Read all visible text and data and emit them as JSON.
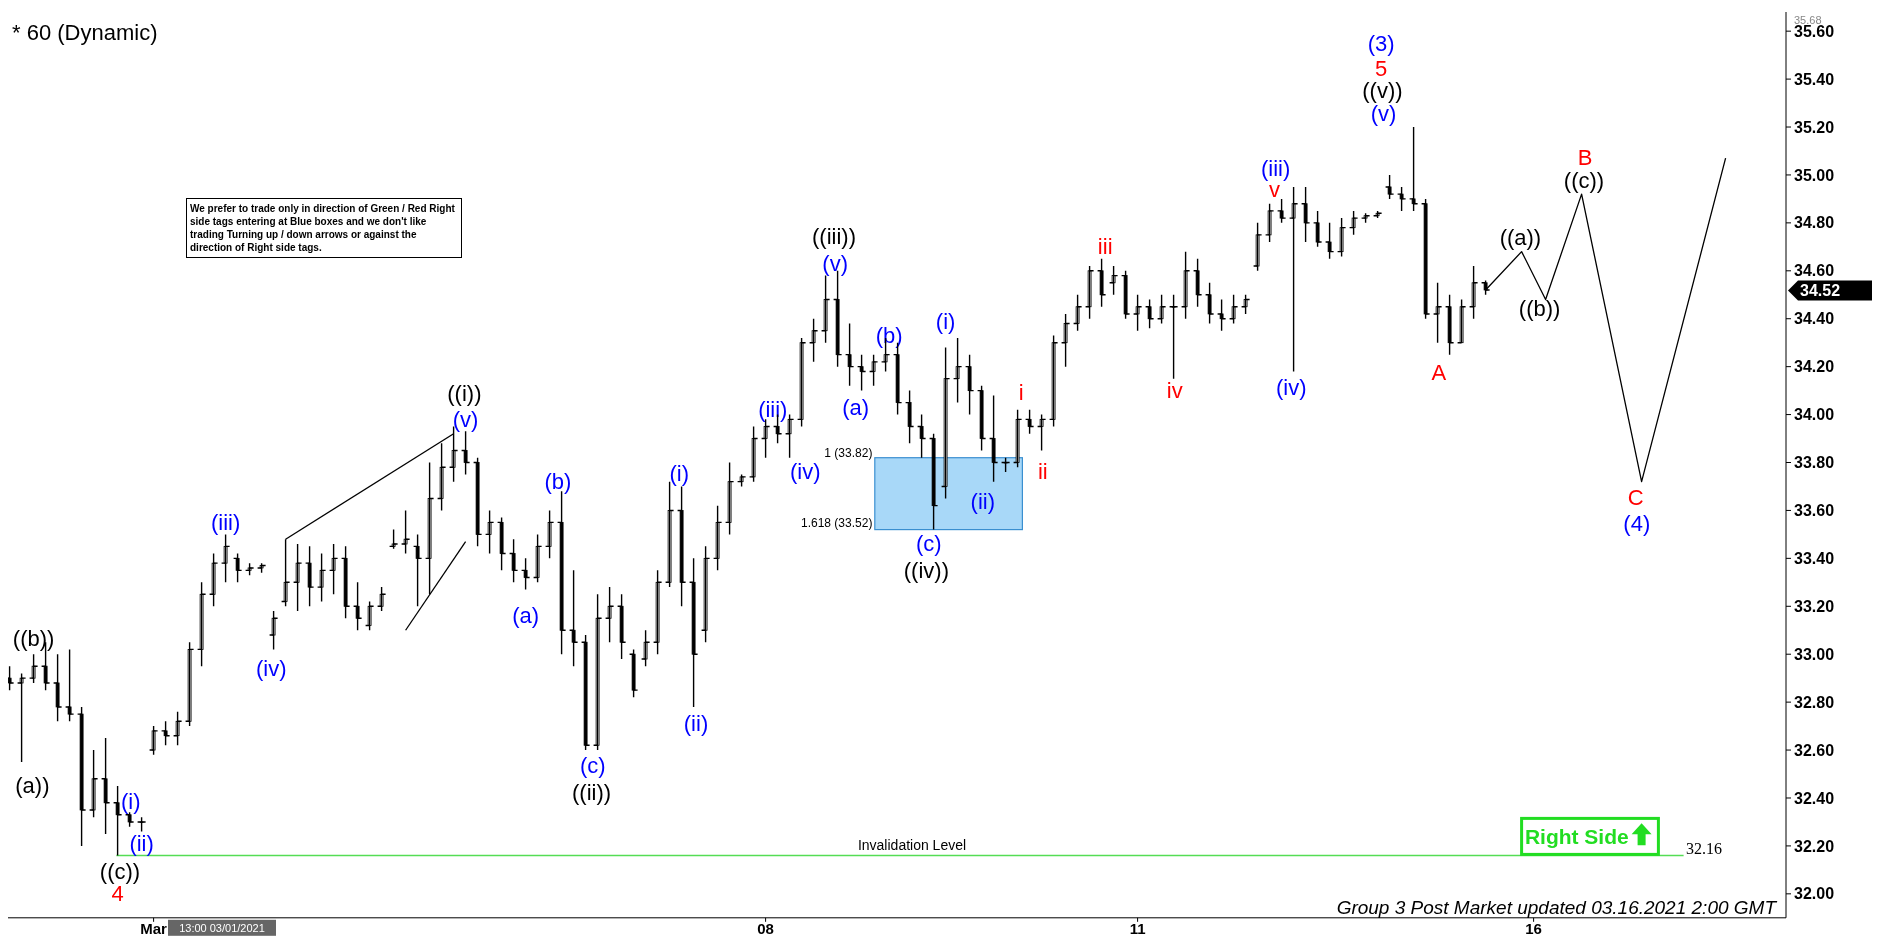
{
  "chart_data": {
    "type": "candlestick",
    "title": "* 60 (Dynamic)",
    "categories": [
      null,
      null,
      null,
      null,
      null,
      null,
      null,
      null,
      null,
      null,
      null,
      null,
      "Mar",
      null,
      null,
      null,
      null,
      null,
      null,
      null,
      null,
      null,
      null,
      null,
      null,
      null,
      null,
      null,
      null,
      null,
      null,
      null,
      null,
      null,
      null,
      null,
      null,
      null,
      null,
      null,
      null,
      null,
      null,
      null,
      null,
      null,
      null,
      null,
      null,
      null,
      null,
      null,
      null,
      null,
      null,
      null,
      null,
      null,
      null,
      null,
      null,
      null,
      null,
      "08",
      null,
      null,
      null,
      null,
      null,
      null,
      null,
      null,
      null,
      null,
      null,
      null,
      null,
      null,
      null,
      null,
      null,
      null,
      null,
      null,
      null,
      null,
      null,
      null,
      null,
      null,
      null,
      null,
      null,
      null,
      "11",
      null,
      null,
      null,
      null,
      null,
      null,
      null,
      null,
      null,
      null,
      null,
      null,
      null,
      null,
      null,
      null,
      null,
      null,
      null,
      null,
      null,
      null,
      null,
      null,
      null,
      null,
      null,
      null,
      null,
      null,
      null,
      null,
      "16",
      null,
      null,
      null,
      null,
      null,
      null,
      null,
      null,
      null,
      null,
      null,
      null,
      null,
      null,
      null,
      null,
      null,
      null,
      null,
      null
    ],
    "ylim": [
      31.9,
      35.68
    ],
    "yticks": [
      {
        "value": 32,
        "label": "32.00"
      },
      {
        "value": 32.2,
        "label": "32.20"
      },
      {
        "value": 32.4,
        "label": "32.40"
      },
      {
        "value": 32.6,
        "label": "32.60"
      },
      {
        "value": 32.8,
        "label": "32.80"
      },
      {
        "value": 33,
        "label": "33.00"
      },
      {
        "value": 33.2,
        "label": "33.20"
      },
      {
        "value": 33.4,
        "label": "33.40"
      },
      {
        "value": 33.6,
        "label": "33.60"
      },
      {
        "value": 33.8,
        "label": "33.80"
      },
      {
        "value": 34,
        "label": "34.00"
      },
      {
        "value": 34.2,
        "label": "34.20"
      },
      {
        "value": 34.4,
        "label": "34.40"
      },
      {
        "value": 34.6,
        "label": "34.60"
      },
      {
        "value": 34.8,
        "label": "34.80"
      },
      {
        "value": 35,
        "label": "35.00"
      },
      {
        "value": 35.2,
        "label": "35.20"
      },
      {
        "value": 35.4,
        "label": "35.40"
      },
      {
        "value": 35.6,
        "label": "35.60"
      }
    ],
    "series": [
      {
        "color": "#000000",
        "ohlc": [
          [
            32.9,
            32.95,
            32.85,
            32.88
          ],
          [
            32.88,
            32.92,
            32.55,
            32.9
          ],
          [
            32.9,
            33.0,
            32.88,
            32.95
          ],
          [
            32.95,
            33.05,
            32.85,
            32.88
          ],
          [
            32.88,
            33.0,
            32.72,
            32.78
          ],
          [
            32.78,
            33.02,
            32.72,
            32.75
          ],
          [
            32.75,
            32.78,
            32.2,
            32.35
          ],
          [
            32.35,
            32.6,
            32.32,
            32.48
          ],
          [
            32.48,
            32.65,
            32.25,
            32.38
          ],
          [
            32.38,
            32.45,
            32.16,
            32.33
          ],
          [
            32.33,
            32.34,
            32.28,
            32.3
          ],
          [
            32.3,
            32.32,
            32.26,
            32.3
          ],
          [
            32.6,
            32.7,
            32.58,
            32.68
          ],
          [
            32.68,
            32.72,
            32.62,
            32.66
          ],
          [
            32.66,
            32.76,
            32.62,
            32.72
          ],
          [
            32.72,
            33.05,
            32.7,
            33.02
          ],
          [
            33.02,
            33.3,
            32.95,
            33.25
          ],
          [
            33.25,
            33.42,
            33.2,
            33.38
          ],
          [
            33.38,
            33.5,
            33.3,
            33.45
          ],
          [
            33.4,
            33.42,
            33.3,
            33.35
          ],
          [
            33.35,
            33.38,
            33.33,
            33.36
          ],
          [
            33.36,
            33.38,
            33.34,
            33.37
          ],
          [
            33.08,
            33.18,
            33.02,
            33.15
          ],
          [
            33.22,
            33.48,
            33.2,
            33.3
          ],
          [
            33.3,
            33.46,
            33.18,
            33.38
          ],
          [
            33.38,
            33.45,
            33.2,
            33.28
          ],
          [
            33.28,
            33.42,
            33.22,
            33.35
          ],
          [
            33.35,
            33.46,
            33.25,
            33.4
          ],
          [
            33.4,
            33.45,
            33.15,
            33.2
          ],
          [
            33.2,
            33.3,
            33.1,
            33.15
          ],
          [
            33.12,
            33.22,
            33.1,
            33.2
          ],
          [
            33.2,
            33.28,
            33.18,
            33.25
          ],
          [
            33.45,
            33.52,
            33.44,
            33.46
          ],
          [
            33.46,
            33.6,
            33.42,
            33.48
          ],
          [
            33.45,
            33.5,
            33.2,
            33.4
          ],
          [
            33.4,
            33.8,
            33.25,
            33.65
          ],
          [
            33.65,
            33.88,
            33.6,
            33.78
          ],
          [
            33.78,
            33.95,
            33.72,
            33.85
          ],
          [
            33.85,
            33.93,
            33.75,
            33.8
          ],
          [
            33.8,
            33.82,
            33.45,
            33.5
          ],
          [
            33.5,
            33.6,
            33.42,
            33.55
          ],
          [
            33.55,
            33.57,
            33.35,
            33.42
          ],
          [
            33.42,
            33.48,
            33.3,
            33.35
          ],
          [
            33.35,
            33.4,
            33.27,
            33.32
          ],
          [
            33.32,
            33.5,
            33.3,
            33.45
          ],
          [
            33.45,
            33.6,
            33.4,
            33.55
          ],
          [
            33.55,
            33.68,
            33.0,
            33.1
          ],
          [
            33.1,
            33.35,
            32.95,
            33.05
          ],
          [
            33.05,
            33.08,
            32.6,
            32.62
          ],
          [
            32.62,
            33.25,
            32.6,
            33.15
          ],
          [
            33.15,
            33.28,
            33.05,
            33.2
          ],
          [
            33.2,
            33.25,
            32.98,
            33.05
          ],
          [
            33.0,
            33.02,
            32.82,
            32.85
          ],
          [
            32.98,
            33.1,
            32.95,
            33.05
          ],
          [
            33.05,
            33.35,
            33.0,
            33.3
          ],
          [
            33.3,
            33.72,
            33.28,
            33.6
          ],
          [
            33.6,
            33.7,
            33.2,
            33.3
          ],
          [
            33.3,
            33.4,
            32.78,
            33.0
          ],
          [
            33.1,
            33.45,
            33.05,
            33.4
          ],
          [
            33.4,
            33.62,
            33.35,
            33.55
          ],
          [
            33.55,
            33.8,
            33.5,
            33.72
          ],
          [
            33.72,
            33.75,
            33.7,
            33.74
          ],
          [
            33.74,
            33.95,
            33.72,
            33.9
          ],
          [
            33.9,
            33.98,
            33.82,
            33.95
          ],
          [
            33.95,
            34.0,
            33.88,
            33.92
          ],
          [
            33.92,
            34.0,
            33.82,
            33.98
          ],
          [
            33.98,
            34.32,
            33.95,
            34.3
          ],
          [
            34.3,
            34.4,
            34.22,
            34.35
          ],
          [
            34.35,
            34.58,
            34.3,
            34.48
          ],
          [
            34.48,
            34.6,
            34.2,
            34.25
          ],
          [
            34.25,
            34.38,
            34.12,
            34.2
          ],
          [
            34.2,
            34.25,
            34.1,
            34.18
          ],
          [
            34.18,
            34.25,
            34.12,
            34.22
          ],
          [
            34.22,
            34.32,
            34.18,
            34.25
          ],
          [
            34.25,
            34.3,
            34.0,
            34.05
          ],
          [
            34.05,
            34.1,
            33.88,
            33.95
          ],
          [
            33.95,
            34.0,
            33.82,
            33.9
          ],
          [
            33.9,
            33.92,
            33.52,
            33.62
          ],
          [
            33.7,
            34.28,
            33.65,
            34.15
          ],
          [
            34.15,
            34.32,
            34.05,
            34.2
          ],
          [
            34.2,
            34.25,
            34.0,
            34.1
          ],
          [
            34.1,
            34.12,
            33.85,
            33.9
          ],
          [
            33.9,
            34.08,
            33.72,
            33.8
          ],
          [
            33.8,
            33.82,
            33.76,
            33.8
          ],
          [
            33.8,
            34.02,
            33.78,
            33.98
          ],
          [
            33.98,
            34.02,
            33.92,
            33.95
          ],
          [
            33.95,
            34.0,
            33.85,
            33.98
          ],
          [
            33.98,
            34.33,
            33.95,
            34.3
          ],
          [
            34.3,
            34.42,
            34.2,
            34.38
          ],
          [
            34.38,
            34.5,
            34.35,
            34.45
          ],
          [
            34.45,
            34.62,
            34.4,
            34.6
          ],
          [
            34.6,
            34.65,
            34.45,
            34.5
          ],
          [
            34.55,
            34.62,
            34.5,
            34.58
          ],
          [
            34.58,
            34.6,
            34.4,
            34.42
          ],
          [
            34.42,
            34.5,
            34.35,
            34.45
          ],
          [
            34.45,
            34.48,
            34.36,
            34.4
          ],
          [
            34.4,
            34.5,
            34.38,
            34.45
          ],
          [
            34.45,
            34.5,
            34.15,
            34.45
          ],
          [
            34.45,
            34.68,
            34.4,
            34.6
          ],
          [
            34.6,
            34.65,
            34.45,
            34.5
          ],
          [
            34.5,
            34.55,
            34.38,
            34.42
          ],
          [
            34.42,
            34.48,
            34.35,
            34.4
          ],
          [
            34.4,
            34.5,
            34.38,
            34.45
          ],
          [
            34.45,
            34.5,
            34.42,
            34.48
          ],
          [
            34.62,
            34.8,
            34.6,
            34.75
          ],
          [
            34.75,
            34.88,
            34.72,
            34.85
          ],
          [
            34.85,
            34.9,
            34.8,
            34.82
          ],
          [
            34.82,
            34.95,
            34.18,
            34.88
          ],
          [
            34.88,
            34.95,
            34.72,
            34.8
          ],
          [
            34.8,
            34.85,
            34.7,
            34.72
          ],
          [
            34.72,
            34.8,
            34.65,
            34.68
          ],
          [
            34.68,
            34.82,
            34.66,
            34.78
          ],
          [
            34.78,
            34.85,
            34.75,
            34.82
          ],
          [
            34.82,
            34.84,
            34.8,
            34.83
          ],
          [
            34.83,
            34.85,
            34.82,
            34.84
          ],
          [
            34.95,
            35.0,
            34.9,
            34.92
          ],
          [
            34.92,
            34.95,
            34.85,
            34.9
          ],
          [
            34.9,
            35.2,
            34.85,
            34.88
          ],
          [
            34.88,
            34.9,
            34.4,
            34.42
          ],
          [
            34.42,
            34.55,
            34.3,
            34.45
          ],
          [
            34.45,
            34.5,
            34.25,
            34.3
          ],
          [
            34.3,
            34.48,
            34.3,
            34.45
          ],
          [
            34.45,
            34.62,
            34.4,
            34.55
          ],
          [
            34.55,
            34.56,
            34.5,
            34.52
          ],
          null,
          null,
          null,
          null,
          null,
          null,
          null,
          null,
          null,
          null,
          null,
          null,
          null,
          null,
          null,
          null,
          null,
          null,
          null,
          null,
          null,
          null,
          null,
          null
        ]
      },
      {
        "type": "line",
        "color": "#000000",
        "values": [
          null,
          null,
          null,
          null,
          null,
          null,
          null,
          null,
          null,
          null,
          null,
          null,
          null,
          null,
          null,
          null,
          null,
          null,
          null,
          null,
          null,
          null,
          null,
          null,
          null,
          null,
          null,
          null,
          null,
          null,
          null,
          null,
          null,
          null,
          null,
          null,
          null,
          null,
          null,
          null,
          null,
          null,
          null,
          null,
          null,
          null,
          null,
          null,
          null,
          null,
          null,
          null,
          null,
          null,
          null,
          null,
          null,
          null,
          null,
          null,
          null,
          null,
          null,
          null,
          null,
          null,
          null,
          null,
          null,
          null,
          null,
          null,
          null,
          null,
          null,
          null,
          null,
          null,
          null,
          null,
          null,
          null,
          null,
          null,
          null,
          null,
          null,
          null,
          null,
          null,
          null,
          null,
          null,
          null,
          null,
          null,
          null,
          null,
          null,
          null,
          null,
          null,
          null,
          null,
          null,
          null,
          null,
          null,
          null,
          null,
          null,
          null,
          null,
          null,
          null,
          null,
          null,
          null,
          null,
          null,
          null,
          null,
          null,
          34.52,
          null,
          null,
          34.68,
          null,
          34.48,
          null,
          null,
          34.92,
          null,
          null,
          null,
          null,
          33.72,
          null,
          null,
          null,
          null,
          null,
          null,
          35.07,
          null,
          null,
          null,
          null
        ]
      },
      {
        "type": "line",
        "color": "#000000",
        "values": [
          null,
          null,
          null,
          null,
          null,
          null,
          null,
          null,
          null,
          null,
          null,
          null,
          null,
          null,
          null,
          null,
          null,
          null,
          null,
          null,
          null,
          null,
          null,
          33.48,
          null,
          null,
          null,
          null,
          null,
          null,
          null,
          null,
          null,
          null,
          null,
          null,
          null,
          33.92,
          null,
          null,
          null,
          null,
          null,
          null,
          null,
          null,
          null,
          null,
          null,
          null,
          null,
          null,
          null,
          null,
          null,
          null,
          null,
          null,
          null,
          null,
          null,
          null,
          null,
          null,
          null,
          null,
          null,
          null,
          null,
          null,
          null,
          null,
          null,
          null,
          null,
          null,
          null,
          null,
          null,
          null,
          null,
          null,
          null,
          null,
          null,
          null,
          null,
          null,
          null,
          null,
          null,
          null,
          null,
          null,
          null,
          null,
          null,
          null,
          null,
          null,
          null,
          null,
          null,
          null,
          null,
          null,
          null,
          null,
          null,
          null,
          null,
          null,
          null,
          null,
          null,
          null,
          null,
          null,
          null,
          null,
          null,
          null,
          null,
          null,
          null,
          null,
          null,
          null,
          null,
          null,
          null,
          null,
          null,
          null,
          null,
          null,
          null,
          null,
          null,
          null,
          null,
          null,
          null,
          null,
          null,
          null,
          null,
          null
        ]
      },
      {
        "type": "line",
        "color": "#000000",
        "values": [
          null,
          null,
          null,
          null,
          null,
          null,
          null,
          null,
          null,
          null,
          null,
          null,
          null,
          null,
          null,
          null,
          null,
          null,
          null,
          null,
          null,
          null,
          null,
          null,
          null,
          null,
          null,
          null,
          null,
          null,
          null,
          null,
          null,
          33.1,
          null,
          null,
          null,
          null,
          33.47,
          null,
          null,
          null,
          null,
          null,
          null,
          null,
          null,
          null,
          null,
          null,
          null,
          null,
          null,
          null,
          null,
          null,
          null,
          null,
          null,
          null,
          null,
          null,
          null,
          null,
          null,
          null,
          null,
          null,
          null,
          null,
          null,
          null,
          null,
          null,
          null,
          null,
          null,
          null,
          null,
          null,
          null,
          null,
          null,
          null,
          null,
          null,
          null,
          null,
          null,
          null,
          null,
          null,
          null,
          null,
          null,
          null,
          null,
          null,
          null,
          null,
          null,
          null,
          null,
          null,
          null,
          null,
          null,
          null,
          null,
          null,
          null,
          null,
          null,
          null,
          null,
          null,
          null,
          null,
          null,
          null,
          null,
          null,
          null,
          null,
          null,
          null,
          null,
          null,
          null,
          null,
          null,
          null,
          null,
          null,
          null,
          null,
          null,
          null,
          null,
          null,
          null,
          null,
          null,
          null,
          null,
          null,
          null,
          null
        ]
      }
    ],
    "ref_lines": [
      {
        "axis": "y",
        "value": 32.16,
        "label": "Invalidation Level",
        "color": "#55dd55"
      }
    ],
    "bands": [
      {
        "axis": "y",
        "from": 33.52,
        "to": 33.82,
        "color": "#a8d8f8"
      }
    ],
    "annotations": [
      "((b))",
      "(a))",
      "(i)",
      "(ii)",
      "((c))",
      "4",
      "(iii)",
      "(iv)",
      "((i))",
      "(v)",
      "(a)",
      "(b)",
      "(c)",
      "((ii))",
      "(i)",
      "(ii)",
      "(iii)",
      "(iv)",
      "((iii))",
      "(v)",
      "(a)",
      "(b)",
      "(i)",
      "(c)",
      "((iv))",
      "(ii)",
      "i",
      "ii",
      "iii",
      "iv",
      "v",
      "(iii)",
      "(iv)",
      "(3)",
      "5",
      "((v))",
      "(v)",
      "A",
      "((a))",
      "((b))",
      "((c))",
      "B",
      "C",
      "(4)",
      "1 (33.82)",
      "1.618 (33.52)",
      "32.16",
      "34.52",
      "Right Side",
      "We prefer to trade only in direction of Green / Red Right side tags entering at Blue boxes and we don't like trading Turning up / down arrows or against the direction of Right side tags.",
      "13:00 03/01/2021",
      "Group 3 Post Market  updated 03.16.2021 2:00 GMT",
      "35.68"
    ]
  }
}
